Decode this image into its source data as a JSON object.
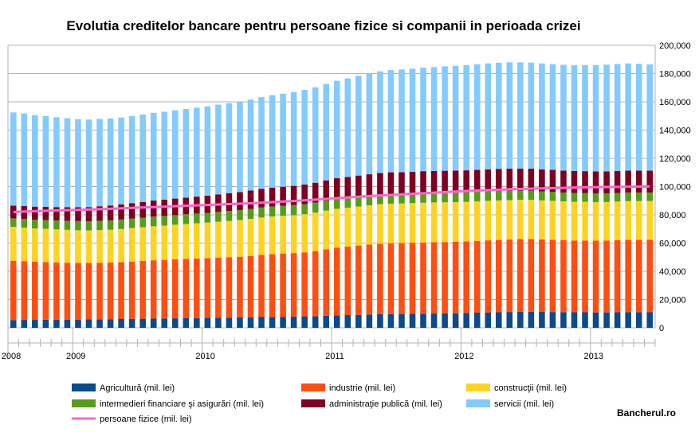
{
  "chart_data": {
    "type": "bar",
    "stacked": true,
    "title": "Evolutia creditelor bancare pentru persoane fizice si companii in perioada crizei",
    "brand": "Bancherul.ro",
    "y_axis_side": "right",
    "ylim": [
      0,
      200000
    ],
    "yticks": [
      0,
      20000,
      40000,
      60000,
      80000,
      100000,
      120000,
      140000,
      160000,
      180000,
      200000
    ],
    "ytick_labels": [
      "0",
      "20,000",
      "40,000",
      "60,000",
      "80,000",
      "100,000",
      "120,000",
      "140,000",
      "160,000",
      "180,000",
      "200,000"
    ],
    "year_labels": [
      {
        "label": "2008",
        "index": 0
      },
      {
        "label": "2009",
        "index": 6
      },
      {
        "label": "2010",
        "index": 18
      },
      {
        "label": "2011",
        "index": 30
      },
      {
        "label": "2012",
        "index": 42
      },
      {
        "label": "2013",
        "index": 54
      }
    ],
    "grid": true,
    "legend_position": "bottom",
    "colors": {
      "agricultura": "#0b4a8b",
      "industrie": "#ff4e12",
      "constructii": "#ffd320",
      "intermedieri": "#579d1c",
      "administratie": "#7e0021",
      "servicii": "#83caff",
      "persoane_fizice": "#ff66cc"
    },
    "series": [
      {
        "key": "agricultura",
        "name": "Agricultură (mil. lei)",
        "values": [
          5500,
          5600,
          5600,
          5700,
          5700,
          5800,
          5800,
          5900,
          6000,
          6100,
          6200,
          6300,
          6400,
          6500,
          6600,
          6700,
          6800,
          6900,
          7000,
          7100,
          7200,
          7300,
          7400,
          7600,
          7700,
          7800,
          7900,
          8100,
          8300,
          8600,
          8800,
          9000,
          9200,
          9400,
          9600,
          9700,
          9800,
          9900,
          10000,
          10100,
          10200,
          10300,
          10500,
          10700,
          10900,
          11000,
          11200,
          11300,
          11400,
          11300,
          11200,
          11100,
          11000,
          11000,
          10900,
          10900,
          11000,
          11100,
          11100,
          11000
        ]
      },
      {
        "key": "industrie",
        "name": "industrie (mil. lei)",
        "values": [
          42000,
          41600,
          41200,
          40900,
          40600,
          40300,
          40100,
          40000,
          40000,
          40100,
          40300,
          40600,
          40900,
          41300,
          41500,
          41800,
          42000,
          42200,
          42400,
          42600,
          42800,
          43000,
          43500,
          44000,
          44500,
          44800,
          45000,
          45300,
          46000,
          47000,
          48000,
          48500,
          49000,
          49500,
          50000,
          50200,
          50200,
          50300,
          50400,
          50500,
          50500,
          50600,
          50700,
          50800,
          51000,
          51200,
          51300,
          51500,
          51500,
          51300,
          51200,
          51000,
          50800,
          50800,
          50800,
          50900,
          51000,
          51200,
          51300,
          51400
        ]
      },
      {
        "key": "constructii",
        "name": "construcţii (mil. lei)",
        "values": [
          24000,
          23800,
          23600,
          23500,
          23400,
          23300,
          23200,
          23100,
          23200,
          23300,
          23500,
          23700,
          23900,
          24100,
          24300,
          24500,
          24700,
          24900,
          25100,
          25400,
          25700,
          26000,
          26300,
          26500,
          26600,
          26700,
          26800,
          27000,
          27200,
          27400,
          27500,
          27600,
          27700,
          27800,
          27900,
          28000,
          28100,
          28100,
          28200,
          28200,
          28200,
          28100,
          28000,
          28000,
          28000,
          28000,
          27900,
          27800,
          27700,
          27600,
          27500,
          27400,
          27400,
          27400,
          27300,
          27300,
          27400,
          27400,
          27400,
          27400
        ]
      },
      {
        "key": "intermedieri",
        "name": "intermedieri financiare şi asigurări (mil. lei)",
        "values": [
          6000,
          6100,
          6100,
          6200,
          6300,
          6400,
          6500,
          6500,
          6600,
          6600,
          6700,
          6700,
          6700,
          6800,
          6800,
          6800,
          6900,
          6900,
          6900,
          7000,
          7000,
          7000,
          7000,
          7100,
          7100,
          7100,
          7200,
          7200,
          7200,
          7200,
          7200,
          7100,
          7100,
          7000,
          7000,
          7000,
          6900,
          6900,
          6900,
          6800,
          6800,
          6800,
          6700,
          6700,
          6700,
          6600,
          6600,
          6500,
          6500,
          6400,
          6400,
          6300,
          6300,
          6200,
          6200,
          6100,
          6100,
          6100,
          6000,
          6000
        ]
      },
      {
        "key": "administratie",
        "name": "administraţie publică (mil. lei)",
        "values": [
          9000,
          9200,
          9300,
          9400,
          9500,
          9600,
          9800,
          10000,
          10300,
          10500,
          10700,
          11000,
          11200,
          11400,
          11500,
          11700,
          11800,
          12000,
          12200,
          12400,
          12600,
          12800,
          13000,
          13200,
          13400,
          13500,
          13600,
          13800,
          14000,
          14200,
          14400,
          14600,
          14800,
          15000,
          15100,
          15200,
          15200,
          15300,
          15400,
          15400,
          15500,
          15500,
          15600,
          15600,
          15600,
          15700,
          15700,
          15600,
          15600,
          15600,
          15600,
          15500,
          15500,
          15500,
          15500,
          15500,
          15500,
          15500,
          15500,
          15500
        ]
      },
      {
        "key": "servicii",
        "name": "servicii (mil. lei)",
        "values": [
          66000,
          65400,
          64800,
          64200,
          63600,
          63000,
          62400,
          62000,
          61800,
          61600,
          61500,
          61700,
          61900,
          62100,
          62300,
          62500,
          62700,
          62900,
          63200,
          63500,
          63800,
          64100,
          64400,
          64900,
          65400,
          65900,
          66400,
          67000,
          67600,
          68300,
          69000,
          69800,
          70600,
          71400,
          72000,
          72400,
          72700,
          73000,
          73300,
          73600,
          73900,
          74200,
          74500,
          74800,
          75000,
          75200,
          75300,
          75200,
          75100,
          75000,
          74800,
          74900,
          75000,
          75100,
          75300,
          75600,
          75800,
          75900,
          75600,
          75200
        ]
      },
      {
        "key": "persoane_fizice",
        "name": "persoane fizice (mil. lei)",
        "type": "line",
        "values": [
          82000,
          82300,
          82600,
          82900,
          83100,
          83300,
          83500,
          83700,
          84000,
          84300,
          84600,
          84900,
          85200,
          85500,
          85800,
          86100,
          86400,
          86700,
          87000,
          87300,
          87600,
          87900,
          88200,
          88600,
          89000,
          89400,
          89800,
          90300,
          90800,
          91300,
          91800,
          92300,
          92800,
          93300,
          93700,
          94100,
          94500,
          94900,
          95300,
          95700,
          96100,
          96500,
          96900,
          97200,
          97500,
          97800,
          98100,
          98300,
          98500,
          98700,
          98900,
          99100,
          99300,
          99500,
          99600,
          99700,
          99800,
          99900,
          100000,
          100100
        ]
      }
    ]
  }
}
